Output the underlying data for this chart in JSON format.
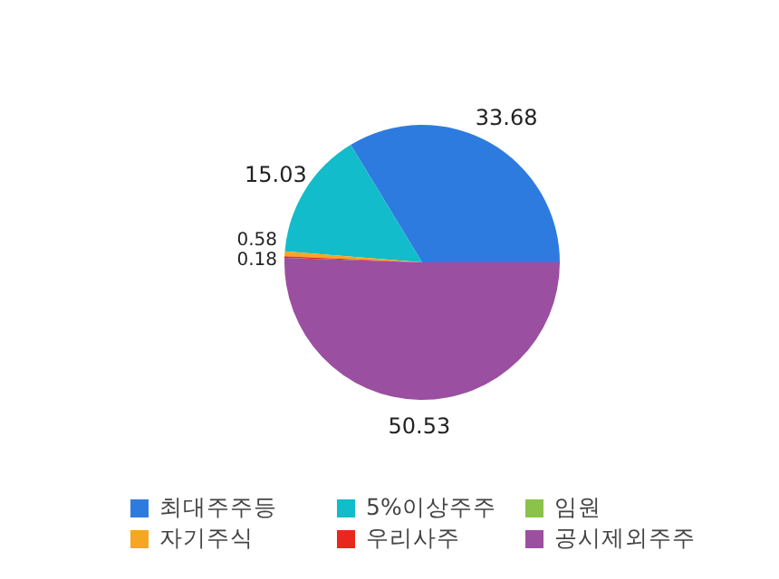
{
  "chart_data": {
    "type": "pie",
    "categories": [
      "최대주주등",
      "5%이상주주",
      "임원",
      "자기주식",
      "우리사주",
      "공시제외주주"
    ],
    "values": [
      33.68,
      15.03,
      null,
      0.58,
      0.18,
      50.53
    ],
    "colors": [
      "#2e7be0",
      "#12bccb",
      "#8bc34a",
      "#f5a623",
      "#e8281e",
      "#9b4fa0"
    ],
    "data_labels": true,
    "legend": "bottom"
  }
}
